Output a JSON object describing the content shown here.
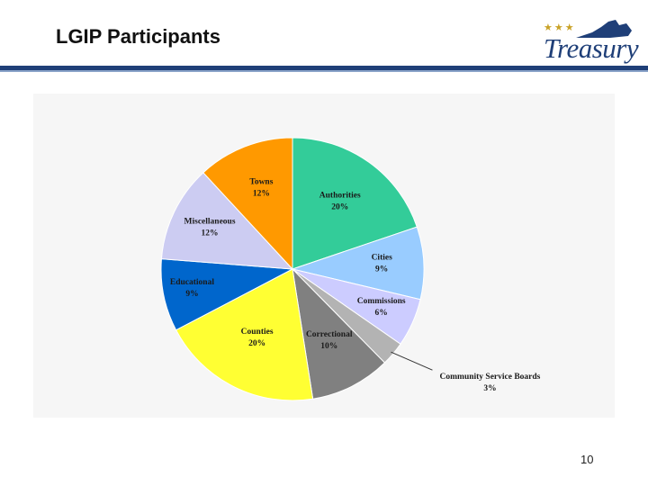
{
  "slide": {
    "title": "LGIP Participants",
    "page_number": "10"
  },
  "logo": {
    "stars": "★★★",
    "word": "Treasury"
  },
  "chart_data": {
    "type": "pie",
    "title": "",
    "start_angle_deg": 0,
    "direction": "clockwise",
    "slices": [
      {
        "label": "Authorities",
        "value": 20,
        "display": "20%",
        "color": "#33cc99"
      },
      {
        "label": "Cities",
        "value": 9,
        "display": "9%",
        "color": "#99ccff"
      },
      {
        "label": "Commissions",
        "value": 6,
        "display": "6%",
        "color": "#ccccff"
      },
      {
        "label": "Community Service Boards",
        "value": 3,
        "display": "3%",
        "color": "#b3b3b3"
      },
      {
        "label": "Correctional",
        "value": 10,
        "display": "10%",
        "color": "#808080"
      },
      {
        "label": "Counties",
        "value": 20,
        "display": "20%",
        "color": "#ffff33"
      },
      {
        "label": "Educational",
        "value": 9,
        "display": "9%",
        "color": "#0066cc"
      },
      {
        "label": "Miscellaneous",
        "value": 12,
        "display": "12%",
        "color": "#ccccf2"
      },
      {
        "label": "Towns",
        "value": 12,
        "display": "12%",
        "color": "#ff9900"
      }
    ]
  }
}
